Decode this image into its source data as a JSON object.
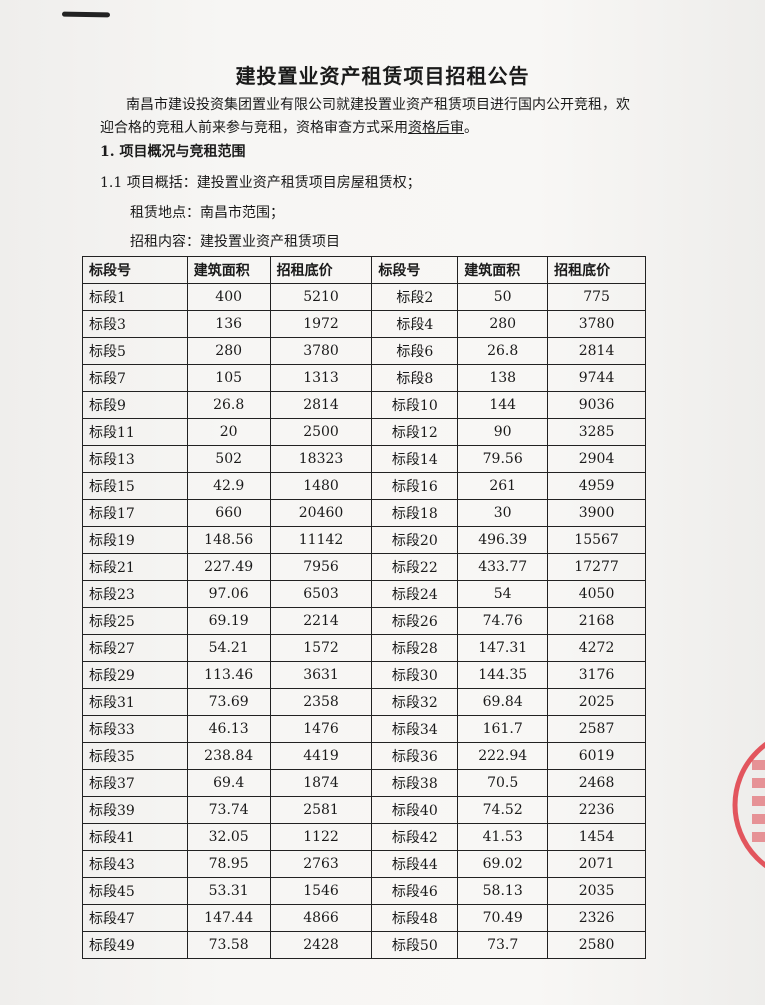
{
  "title": "建投置业资产租赁项目招租公告",
  "intro": {
    "line1": "南昌市建设投资集团置业有限公司就建投置业资产租赁项目进行国内公开竞租，欢",
    "line2_prefix": "迎合格的竞租人前来参与竞租，资格审查方式采用",
    "line2_underlined": "资格后审",
    "line2_suffix": "。"
  },
  "section1": {
    "heading": "1. 项目概况与竞租范围",
    "item_1_1": "1.1  项目概括：建投置业资产租赁项目房屋租赁权；",
    "location": "租赁地点：南昌市范围；",
    "content": "招租内容：建投置业资产租赁项目"
  },
  "table": {
    "headers": [
      "标段号",
      "建筑面积",
      "招租底价",
      "标段号",
      "建筑面积",
      "招租底价"
    ],
    "rows": [
      [
        "标段1",
        "400",
        "5210",
        "标段2",
        "50",
        "775"
      ],
      [
        "标段3",
        "136",
        "1972",
        "标段4",
        "280",
        "3780"
      ],
      [
        "标段5",
        "280",
        "3780",
        "标段6",
        "26.8",
        "2814"
      ],
      [
        "标段7",
        "105",
        "1313",
        "标段8",
        "138",
        "9744"
      ],
      [
        "标段9",
        "26.8",
        "2814",
        "标段10",
        "144",
        "9036"
      ],
      [
        "标段11",
        "20",
        "2500",
        "标段12",
        "90",
        "3285"
      ],
      [
        "标段13",
        "502",
        "18323",
        "标段14",
        "79.56",
        "2904"
      ],
      [
        "标段15",
        "42.9",
        "1480",
        "标段16",
        "261",
        "4959"
      ],
      [
        "标段17",
        "660",
        "20460",
        "标段18",
        "30",
        "3900"
      ],
      [
        "标段19",
        "148.56",
        "11142",
        "标段20",
        "496.39",
        "15567"
      ],
      [
        "标段21",
        "227.49",
        "7956",
        "标段22",
        "433.77",
        "17277"
      ],
      [
        "标段23",
        "97.06",
        "6503",
        "标段24",
        "54",
        "4050"
      ],
      [
        "标段25",
        "69.19",
        "2214",
        "标段26",
        "74.76",
        "2168"
      ],
      [
        "标段27",
        "54.21",
        "1572",
        "标段28",
        "147.31",
        "4272"
      ],
      [
        "标段29",
        "113.46",
        "3631",
        "标段30",
        "144.35",
        "3176"
      ],
      [
        "标段31",
        "73.69",
        "2358",
        "标段32",
        "69.84",
        "2025"
      ],
      [
        "标段33",
        "46.13",
        "1476",
        "标段34",
        "161.7",
        "2587"
      ],
      [
        "标段35",
        "238.84",
        "4419",
        "标段36",
        "222.94",
        "6019"
      ],
      [
        "标段37",
        "69.4",
        "1874",
        "标段38",
        "70.5",
        "2468"
      ],
      [
        "标段39",
        "73.74",
        "2581",
        "标段40",
        "74.52",
        "2236"
      ],
      [
        "标段41",
        "32.05",
        "1122",
        "标段42",
        "41.53",
        "1454"
      ],
      [
        "标段43",
        "78.95",
        "2763",
        "标段44",
        "69.02",
        "2071"
      ],
      [
        "标段45",
        "53.31",
        "1546",
        "标段46",
        "58.13",
        "2035"
      ],
      [
        "标段47",
        "147.44",
        "4866",
        "标段48",
        "70.49",
        "2326"
      ],
      [
        "标段49",
        "73.58",
        "2428",
        "标段50",
        "73.7",
        "2580"
      ]
    ]
  },
  "colors": {
    "stamp": "#e0303a",
    "ink": "#1a1a1a"
  }
}
